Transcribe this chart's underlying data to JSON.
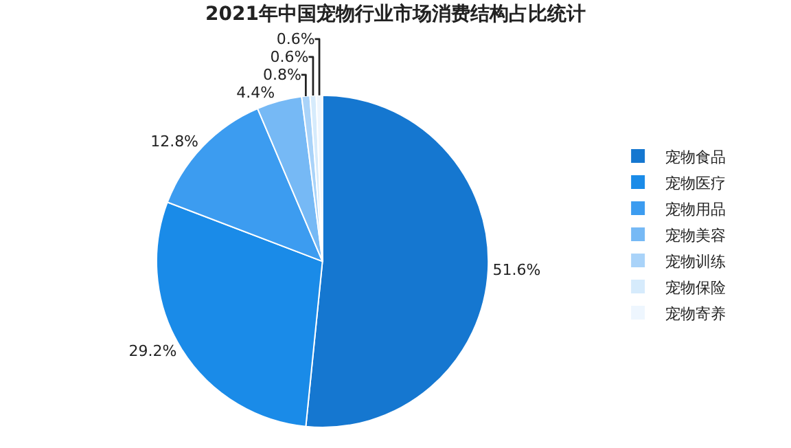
{
  "chart_data": {
    "type": "pie",
    "title": "2021年中国宠物行业市场消费结构占比统计",
    "categories": [
      "宠物食品",
      "宠物医疗",
      "宠物用品",
      "宠物美容",
      "宠物训练",
      "宠物保险",
      "宠物寄养"
    ],
    "values": [
      51.6,
      29.2,
      12.8,
      4.4,
      0.8,
      0.6,
      0.6
    ],
    "value_labels": [
      "51.6%",
      "29.2%",
      "12.8%",
      "4.4%",
      "0.8%",
      "0.6%",
      "0.6%"
    ],
    "colors": [
      "#1577d0",
      "#1a8be8",
      "#3c9cf0",
      "#76b9f5",
      "#a9d3f9",
      "#d6ebfc",
      "#eef6fe"
    ],
    "legend": "right"
  }
}
